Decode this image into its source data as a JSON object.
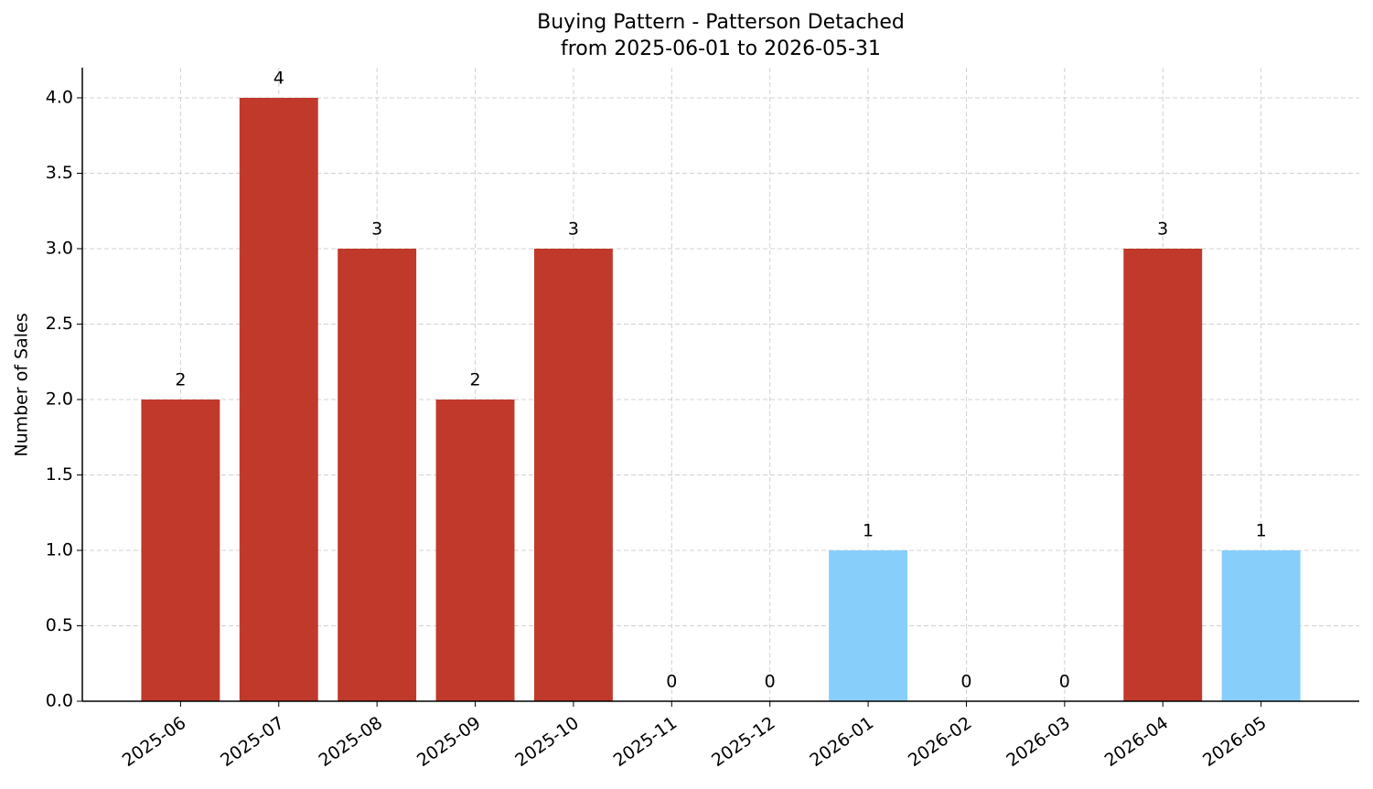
{
  "chart_data": {
    "type": "bar",
    "title": "Buying Pattern - Patterson Detached",
    "subtitle": "from 2025-06-01 to 2026-05-31",
    "y_label": "Number of Sales",
    "categories": [
      "2025-06",
      "2025-07",
      "2025-08",
      "2025-09",
      "2025-10",
      "2025-11",
      "2025-12",
      "2026-01",
      "2026-02",
      "2026-03",
      "2026-04",
      "2026-05"
    ],
    "values": [
      2,
      4,
      3,
      2,
      3,
      0,
      0,
      1,
      0,
      0,
      3,
      1
    ],
    "colors": [
      "#c0392b",
      "#c0392b",
      "#c0392b",
      "#c0392b",
      "#c0392b",
      "#c0392b",
      "#c0392b",
      "#87cefa",
      "#c0392b",
      "#c0392b",
      "#c0392b",
      "#87cefa"
    ],
    "ylim": [
      0,
      4.2
    ],
    "yticks": [
      {
        "value": 0,
        "label": "0.0"
      },
      {
        "value": 0.5,
        "label": "0.5"
      },
      {
        "value": 1,
        "label": "1.0"
      },
      {
        "value": 1.5,
        "label": "1.5"
      },
      {
        "value": 2,
        "label": "2.0"
      },
      {
        "value": 2.5,
        "label": "2.5"
      },
      {
        "value": 3,
        "label": "3.0"
      },
      {
        "value": 3.5,
        "label": "3.5"
      },
      {
        "value": 4,
        "label": "4.0"
      }
    ],
    "grid": true
  }
}
